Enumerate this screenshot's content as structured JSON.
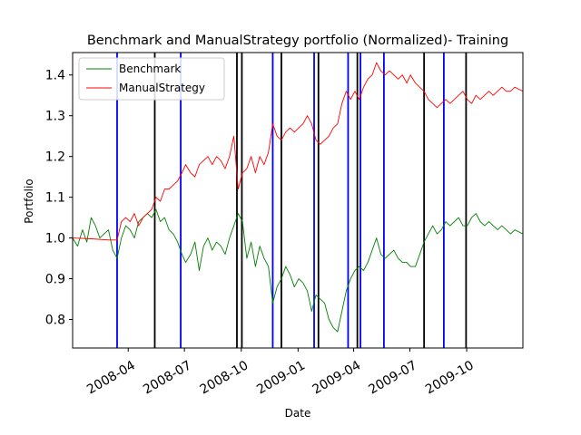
{
  "chart_data": {
    "type": "line",
    "title": "Benchmark and ManualStrategy portfolio (Normalized)- Training",
    "xlabel": "Date",
    "ylabel": "Portfolio",
    "xlim": [
      "2008-01-02",
      "2009-12-31"
    ],
    "ylim": [
      0.73,
      1.455
    ],
    "x_ticks": [
      {
        "date": "2008-04-01",
        "label": "2008-04"
      },
      {
        "date": "2008-07-01",
        "label": "2008-07"
      },
      {
        "date": "2008-10-01",
        "label": "2008-10"
      },
      {
        "date": "2009-01-01",
        "label": "2009-01"
      },
      {
        "date": "2009-04-01",
        "label": "2009-04"
      },
      {
        "date": "2009-07-01",
        "label": "2009-07"
      },
      {
        "date": "2009-10-01",
        "label": "2009-10"
      }
    ],
    "y_ticks": [
      0.8,
      0.9,
      1.0,
      1.1,
      1.2,
      1.3,
      1.4
    ],
    "y_tick_labels": [
      "0.8",
      "0.9",
      "1.0",
      "1.1",
      "1.2",
      "1.3",
      "1.4"
    ],
    "grid": false,
    "legend": {
      "placement": "top-left"
    },
    "series": [
      {
        "name": "Benchmark",
        "color": "#008000",
        "points": [
          [
            "2008-01-02",
            1.0
          ],
          [
            "2008-01-10",
            0.98
          ],
          [
            "2008-01-18",
            1.02
          ],
          [
            "2008-01-25",
            0.99
          ],
          [
            "2008-02-01",
            1.05
          ],
          [
            "2008-02-08",
            1.03
          ],
          [
            "2008-02-15",
            1.0
          ],
          [
            "2008-02-22",
            1.01
          ],
          [
            "2008-02-29",
            1.02
          ],
          [
            "2008-03-07",
            0.97
          ],
          [
            "2008-03-14",
            0.95
          ],
          [
            "2008-03-21",
            1.0
          ],
          [
            "2008-03-28",
            1.03
          ],
          [
            "2008-04-04",
            1.02
          ],
          [
            "2008-04-11",
            1.0
          ],
          [
            "2008-04-18",
            1.04
          ],
          [
            "2008-04-25",
            1.05
          ],
          [
            "2008-05-02",
            1.06
          ],
          [
            "2008-05-09",
            1.05
          ],
          [
            "2008-05-16",
            1.07
          ],
          [
            "2008-05-23",
            1.04
          ],
          [
            "2008-05-30",
            1.05
          ],
          [
            "2008-06-06",
            1.02
          ],
          [
            "2008-06-13",
            1.01
          ],
          [
            "2008-06-20",
            0.99
          ],
          [
            "2008-06-27",
            0.96
          ],
          [
            "2008-07-03",
            0.94
          ],
          [
            "2008-07-11",
            0.96
          ],
          [
            "2008-07-18",
            0.99
          ],
          [
            "2008-07-25",
            0.92
          ],
          [
            "2008-08-01",
            0.98
          ],
          [
            "2008-08-08",
            1.0
          ],
          [
            "2008-08-15",
            0.97
          ],
          [
            "2008-08-22",
            0.99
          ],
          [
            "2008-08-29",
            0.98
          ],
          [
            "2008-09-05",
            0.96
          ],
          [
            "2008-09-12",
            1.0
          ],
          [
            "2008-09-19",
            1.03
          ],
          [
            "2008-09-26",
            1.06
          ],
          [
            "2008-10-03",
            1.04
          ],
          [
            "2008-10-10",
            0.95
          ],
          [
            "2008-10-17",
            0.99
          ],
          [
            "2008-10-24",
            0.93
          ],
          [
            "2008-10-31",
            0.98
          ],
          [
            "2008-11-07",
            0.95
          ],
          [
            "2008-11-14",
            0.93
          ],
          [
            "2008-11-21",
            0.84
          ],
          [
            "2008-11-28",
            0.88
          ],
          [
            "2008-12-05",
            0.9
          ],
          [
            "2008-12-12",
            0.93
          ],
          [
            "2008-12-19",
            0.91
          ],
          [
            "2008-12-26",
            0.88
          ],
          [
            "2009-01-02",
            0.9
          ],
          [
            "2009-01-09",
            0.89
          ],
          [
            "2009-01-16",
            0.87
          ],
          [
            "2009-01-23",
            0.82
          ],
          [
            "2009-01-30",
            0.86
          ],
          [
            "2009-02-06",
            0.85
          ],
          [
            "2009-02-13",
            0.84
          ],
          [
            "2009-02-20",
            0.8
          ],
          [
            "2009-02-27",
            0.78
          ],
          [
            "2009-03-06",
            0.77
          ],
          [
            "2009-03-13",
            0.82
          ],
          [
            "2009-03-20",
            0.87
          ],
          [
            "2009-03-27",
            0.9
          ],
          [
            "2009-04-03",
            0.92
          ],
          [
            "2009-04-10",
            0.93
          ],
          [
            "2009-04-17",
            0.92
          ],
          [
            "2009-04-24",
            0.94
          ],
          [
            "2009-05-01",
            0.97
          ],
          [
            "2009-05-08",
            1.0
          ],
          [
            "2009-05-15",
            0.96
          ],
          [
            "2009-05-22",
            0.95
          ],
          [
            "2009-05-29",
            0.96
          ],
          [
            "2009-06-05",
            0.97
          ],
          [
            "2009-06-12",
            0.95
          ],
          [
            "2009-06-19",
            0.94
          ],
          [
            "2009-06-26",
            0.94
          ],
          [
            "2009-07-02",
            0.93
          ],
          [
            "2009-07-10",
            0.93
          ],
          [
            "2009-07-17",
            0.96
          ],
          [
            "2009-07-24",
            0.99
          ],
          [
            "2009-07-31",
            1.01
          ],
          [
            "2009-08-07",
            1.03
          ],
          [
            "2009-08-14",
            1.01
          ],
          [
            "2009-08-21",
            1.02
          ],
          [
            "2009-08-28",
            1.04
          ],
          [
            "2009-09-04",
            1.03
          ],
          [
            "2009-09-11",
            1.04
          ],
          [
            "2009-09-18",
            1.05
          ],
          [
            "2009-09-25",
            1.03
          ],
          [
            "2009-10-02",
            1.03
          ],
          [
            "2009-10-09",
            1.05
          ],
          [
            "2009-10-16",
            1.06
          ],
          [
            "2009-10-23",
            1.04
          ],
          [
            "2009-10-30",
            1.03
          ],
          [
            "2009-11-06",
            1.04
          ],
          [
            "2009-11-13",
            1.03
          ],
          [
            "2009-11-20",
            1.02
          ],
          [
            "2009-11-27",
            1.03
          ],
          [
            "2009-12-04",
            1.02
          ],
          [
            "2009-12-11",
            1.01
          ],
          [
            "2009-12-18",
            1.02
          ],
          [
            "2009-12-31",
            1.01
          ]
        ]
      },
      {
        "name": "ManualStrategy",
        "color": "#ff0000",
        "points": [
          [
            "2008-01-02",
            1.0
          ],
          [
            "2008-02-01",
            0.998
          ],
          [
            "2008-03-01",
            0.995
          ],
          [
            "2008-03-14",
            0.995
          ],
          [
            "2008-03-21",
            1.04
          ],
          [
            "2008-03-28",
            1.05
          ],
          [
            "2008-04-04",
            1.04
          ],
          [
            "2008-04-11",
            1.06
          ],
          [
            "2008-04-18",
            1.03
          ],
          [
            "2008-04-25",
            1.05
          ],
          [
            "2008-05-02",
            1.06
          ],
          [
            "2008-05-09",
            1.07
          ],
          [
            "2008-05-16",
            1.1
          ],
          [
            "2008-05-23",
            1.09
          ],
          [
            "2008-05-30",
            1.12
          ],
          [
            "2008-06-06",
            1.12
          ],
          [
            "2008-06-13",
            1.13
          ],
          [
            "2008-06-20",
            1.14
          ],
          [
            "2008-06-27",
            1.16
          ],
          [
            "2008-07-03",
            1.18
          ],
          [
            "2008-07-11",
            1.16
          ],
          [
            "2008-07-18",
            1.15
          ],
          [
            "2008-07-25",
            1.18
          ],
          [
            "2008-08-01",
            1.19
          ],
          [
            "2008-08-08",
            1.2
          ],
          [
            "2008-08-15",
            1.18
          ],
          [
            "2008-08-22",
            1.2
          ],
          [
            "2008-08-29",
            1.19
          ],
          [
            "2008-09-05",
            1.17
          ],
          [
            "2008-09-12",
            1.2
          ],
          [
            "2008-09-19",
            1.25
          ],
          [
            "2008-09-26",
            1.12
          ],
          [
            "2008-10-03",
            1.16
          ],
          [
            "2008-10-10",
            1.17
          ],
          [
            "2008-10-17",
            1.2
          ],
          [
            "2008-10-24",
            1.16
          ],
          [
            "2008-10-31",
            1.2
          ],
          [
            "2008-11-07",
            1.18
          ],
          [
            "2008-11-14",
            1.21
          ],
          [
            "2008-11-21",
            1.28
          ],
          [
            "2008-11-28",
            1.25
          ],
          [
            "2008-12-05",
            1.24
          ],
          [
            "2008-12-12",
            1.26
          ],
          [
            "2008-12-19",
            1.27
          ],
          [
            "2008-12-26",
            1.26
          ],
          [
            "2009-01-02",
            1.27
          ],
          [
            "2009-01-09",
            1.28
          ],
          [
            "2009-01-16",
            1.3
          ],
          [
            "2009-01-23",
            1.28
          ],
          [
            "2009-01-30",
            1.24
          ],
          [
            "2009-02-06",
            1.23
          ],
          [
            "2009-02-13",
            1.24
          ],
          [
            "2009-02-20",
            1.25
          ],
          [
            "2009-02-27",
            1.27
          ],
          [
            "2009-03-06",
            1.28
          ],
          [
            "2009-03-13",
            1.33
          ],
          [
            "2009-03-20",
            1.36
          ],
          [
            "2009-03-27",
            1.34
          ],
          [
            "2009-04-03",
            1.36
          ],
          [
            "2009-04-10",
            1.34
          ],
          [
            "2009-04-17",
            1.37
          ],
          [
            "2009-04-24",
            1.39
          ],
          [
            "2009-05-01",
            1.4
          ],
          [
            "2009-05-08",
            1.43
          ],
          [
            "2009-05-15",
            1.41
          ],
          [
            "2009-05-22",
            1.4
          ],
          [
            "2009-05-29",
            1.41
          ],
          [
            "2009-06-05",
            1.4
          ],
          [
            "2009-06-12",
            1.39
          ],
          [
            "2009-06-19",
            1.4
          ],
          [
            "2009-06-26",
            1.38
          ],
          [
            "2009-07-02",
            1.4
          ],
          [
            "2009-07-10",
            1.38
          ],
          [
            "2009-07-17",
            1.37
          ],
          [
            "2009-07-24",
            1.36
          ],
          [
            "2009-07-31",
            1.34
          ],
          [
            "2009-08-07",
            1.33
          ],
          [
            "2009-08-14",
            1.32
          ],
          [
            "2009-08-21",
            1.33
          ],
          [
            "2009-08-28",
            1.34
          ],
          [
            "2009-09-04",
            1.33
          ],
          [
            "2009-09-11",
            1.34
          ],
          [
            "2009-09-18",
            1.35
          ],
          [
            "2009-09-25",
            1.36
          ],
          [
            "2009-10-02",
            1.34
          ],
          [
            "2009-10-09",
            1.33
          ],
          [
            "2009-10-16",
            1.35
          ],
          [
            "2009-10-23",
            1.34
          ],
          [
            "2009-10-30",
            1.35
          ],
          [
            "2009-11-06",
            1.36
          ],
          [
            "2009-11-13",
            1.35
          ],
          [
            "2009-11-20",
            1.36
          ],
          [
            "2009-11-27",
            1.37
          ],
          [
            "2009-12-04",
            1.36
          ],
          [
            "2009-12-11",
            1.36
          ],
          [
            "2009-12-18",
            1.37
          ],
          [
            "2009-12-31",
            1.36
          ]
        ]
      }
    ],
    "vertical_lines": [
      {
        "date": "2008-03-14",
        "color": "#0000ff"
      },
      {
        "date": "2008-05-14",
        "color": "#000000"
      },
      {
        "date": "2008-06-25",
        "color": "#0000ff"
      },
      {
        "date": "2008-09-24",
        "color": "#000000"
      },
      {
        "date": "2008-10-02",
        "color": "#000000"
      },
      {
        "date": "2008-11-21",
        "color": "#0000ff"
      },
      {
        "date": "2008-12-05",
        "color": "#000000"
      },
      {
        "date": "2009-01-27",
        "color": "#0000ff"
      },
      {
        "date": "2009-02-03",
        "color": "#000000"
      },
      {
        "date": "2009-03-23",
        "color": "#0000ff"
      },
      {
        "date": "2009-04-07",
        "color": "#000000"
      },
      {
        "date": "2009-04-12",
        "color": "#0000ff"
      },
      {
        "date": "2009-05-20",
        "color": "#0000ff"
      },
      {
        "date": "2009-07-24",
        "color": "#000000"
      },
      {
        "date": "2009-08-25",
        "color": "#0000ff"
      },
      {
        "date": "2009-09-30",
        "color": "#000000"
      }
    ]
  }
}
